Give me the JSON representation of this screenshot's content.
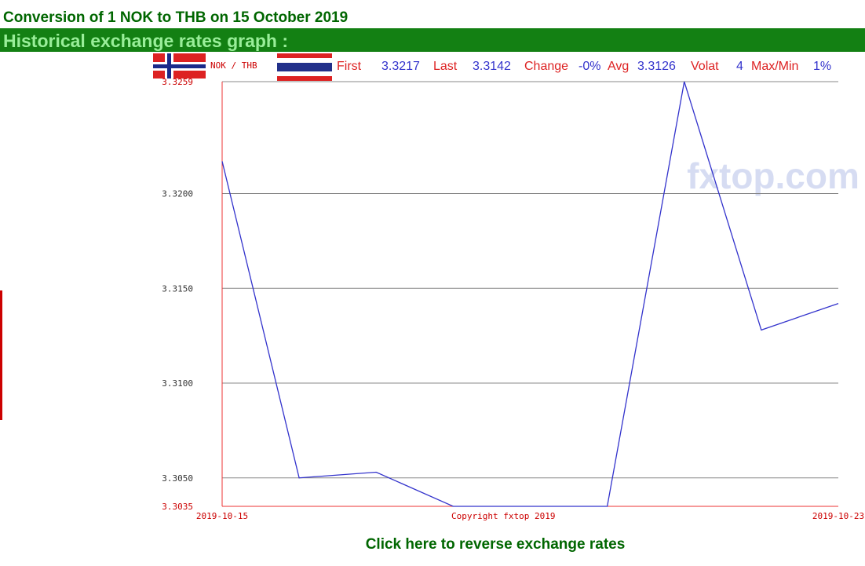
{
  "header": {
    "title": "Conversion of 1 NOK to THB on 15 October 2019",
    "subtitle": "Historical exchange rates graph :"
  },
  "chart_data": {
    "type": "line",
    "pair": "NOK / THB",
    "stats": [
      {
        "label": "First",
        "value": 3.3217
      },
      {
        "label": "Last",
        "value": 3.3142
      },
      {
        "label": "Change",
        "value": "-0%"
      },
      {
        "label": "Avg",
        "value": 3.3126
      },
      {
        "label": "Volat",
        "value": 4
      },
      {
        "label": "Max/Min",
        "value": "1%"
      }
    ],
    "categories": [
      "2019-10-15",
      null,
      null,
      null,
      null,
      null,
      null,
      null,
      "2019-10-23"
    ],
    "series": [
      {
        "color": "#3333cc",
        "values": [
          3.3217,
          3.305,
          3.3053,
          3.3035,
          3.3035,
          3.3035,
          3.3259,
          3.3128,
          3.3142
        ]
      }
    ],
    "ylim": [
      3.3035,
      3.3259
    ],
    "yticks": [
      3.3035,
      {
        "value": 3.305,
        "label": "3.3050"
      },
      {
        "value": 3.31,
        "label": "3.3100"
      },
      {
        "value": 3.315,
        "label": "3.3150"
      },
      {
        "value": 3.32,
        "label": "3.3200"
      },
      3.3259
    ],
    "grid": true,
    "copyright": "Copyright fxtop 2019",
    "watermark": "fxtop.com"
  },
  "footer": {
    "link": "Click here to reverse exchange rates"
  }
}
